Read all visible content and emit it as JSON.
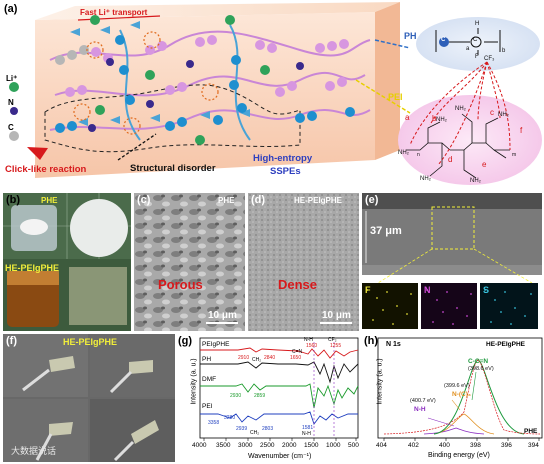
{
  "panel_a": {
    "label": "(a)",
    "fast_transport": "Fast Li⁺ transport",
    "legend": [
      "Li⁺",
      "N",
      "C"
    ],
    "legend_colors": {
      "li": "#2fa25a",
      "n": "#3a2a8c",
      "c": "#b6b6b6"
    },
    "click_like": "Click-like reaction",
    "structural_disorder": "Structural disorder",
    "high_entropy": "High-entropy",
    "sspes": "SSPEs",
    "ph_tag": "PH",
    "pei_tag": "PEI",
    "ph_subscripts": {
      "a": "a",
      "b": "b",
      "c": "C",
      "h": "H",
      "f": "F",
      "cf3": "CF₃"
    },
    "pei_letters": [
      "a",
      "b",
      "c",
      "d",
      "e",
      "f"
    ],
    "pei_groups": [
      "NH₂",
      "NH₂",
      "NH₂",
      "NH₂",
      "NH₂",
      "NH₂"
    ],
    "pei_subs": {
      "n": "n",
      "m": "m",
      "h": "H",
      "n_atom": "N"
    }
  },
  "panel_b": {
    "label": "(b)",
    "top_text": "PHE",
    "bottom_text": "HE-PEIgPHE"
  },
  "panel_c": {
    "label": "(c)",
    "tag": "PHE",
    "desc": "Porous",
    "scale": "10 μm"
  },
  "panel_d": {
    "label": "(d)",
    "tag": "HE-PEIgPHE",
    "desc": "Dense",
    "scale": "10 μm"
  },
  "panel_e": {
    "label": "(e)",
    "thickness": "37 μm",
    "maps": [
      "F",
      "N",
      "S"
    ],
    "map_colors": [
      "#e8e23a",
      "#d04ad9",
      "#3ac6e0"
    ]
  },
  "panel_f": {
    "label": "(f)",
    "tag": "HE-PEIgPHE"
  },
  "panel_g": {
    "label": "(g)",
    "xlabel": "Wavenumber (cm⁻¹)",
    "ylabel": "Intensity (a. u.)",
    "xticks": [
      "4000",
      "3500",
      "3000",
      "2500",
      "2000",
      "1500",
      "1000",
      "500"
    ],
    "series": [
      "PEIgPHE",
      "PH",
      "DMF",
      "PEI"
    ],
    "series_colors": [
      "#d7191c",
      "#111111",
      "#1a9a2b",
      "#1f3fbf"
    ],
    "annotations": {
      "n_h_top": "N-H",
      "cf2": "CF₂",
      "v1560": "1560",
      "v1255": "1255",
      "v2910": "2910",
      "ch2": "CH₂",
      "v2840": "2840",
      "v1650": "1650",
      "cn": "C=N",
      "v2930": "2930",
      "v2859": "2859",
      "v3358": "3358",
      "v3280": "3280",
      "v2939": "2939",
      "ch2b": "CH₂",
      "v2803": "2803",
      "v1581": "1581",
      "nh_b": "N-H"
    }
  },
  "panel_h": {
    "label": "(h)",
    "title": "N 1s",
    "sample": "HE-PEIgPHE",
    "phe": "PHE",
    "xlabel": "Binding energy (eV)",
    "ylabel": "Intensity (a. u.)",
    "xticks": [
      "404",
      "402",
      "400",
      "398",
      "396",
      "394"
    ],
    "peaks": [
      {
        "name": "C-C=N",
        "energy": "(398.6 eV)",
        "color": "#1d9a3e"
      },
      {
        "name": "N-(C)₃",
        "energy": "(399.6 eV)",
        "color": "#e09020"
      },
      {
        "name": "N-H",
        "energy": "(400.7 eV)",
        "color": "#8a2bbf"
      }
    ]
  },
  "watermark": "大数据说话"
}
